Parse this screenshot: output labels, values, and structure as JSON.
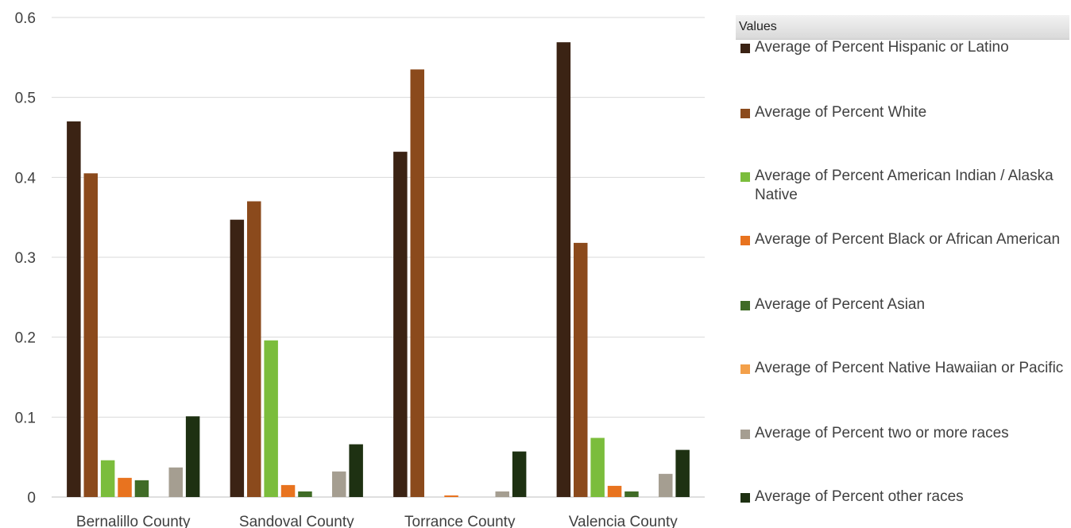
{
  "chart_data": {
    "type": "bar",
    "categories": [
      "Bernalillo County",
      "Sandoval County",
      "Torrance County",
      "Valencia County"
    ],
    "ylim": [
      0,
      0.6
    ],
    "yticks": [
      "0",
      "0.1",
      "0.2",
      "0.3",
      "0.4",
      "0.5",
      "0.6"
    ],
    "grid": true,
    "legend_position": "right",
    "legend_title": "Values",
    "series": [
      {
        "name": "Average of Percent Hispanic or Latino",
        "color": "#3b2314",
        "values": [
          0.47,
          0.347,
          0.432,
          0.569
        ]
      },
      {
        "name": "Average of Percent White",
        "color": "#8b4a1c",
        "values": [
          0.405,
          0.37,
          0.535,
          0.318
        ]
      },
      {
        "name": "Average of Percent American Indian / Alaska Native",
        "color": "#7bbd3c",
        "values": [
          0.046,
          0.196,
          0.0,
          0.074
        ]
      },
      {
        "name": "Average of Percent Black or African American",
        "color": "#e8731f",
        "values": [
          0.024,
          0.015,
          0.002,
          0.014
        ]
      },
      {
        "name": "Average of Percent Asian",
        "color": "#3f6b26",
        "values": [
          0.021,
          0.007,
          0.0,
          0.007
        ]
      },
      {
        "name": "Average of Percent Native Hawaiian or Pacific",
        "color": "#f3a04a",
        "values": [
          0.0,
          0.0,
          0.0,
          0.0
        ]
      },
      {
        "name": "Average of Percent two or more races",
        "color": "#a59e91",
        "values": [
          0.037,
          0.032,
          0.007,
          0.029
        ]
      },
      {
        "name": "Average of Percent other races",
        "color": "#1e3112",
        "values": [
          0.101,
          0.066,
          0.057,
          0.059
        ]
      }
    ]
  }
}
